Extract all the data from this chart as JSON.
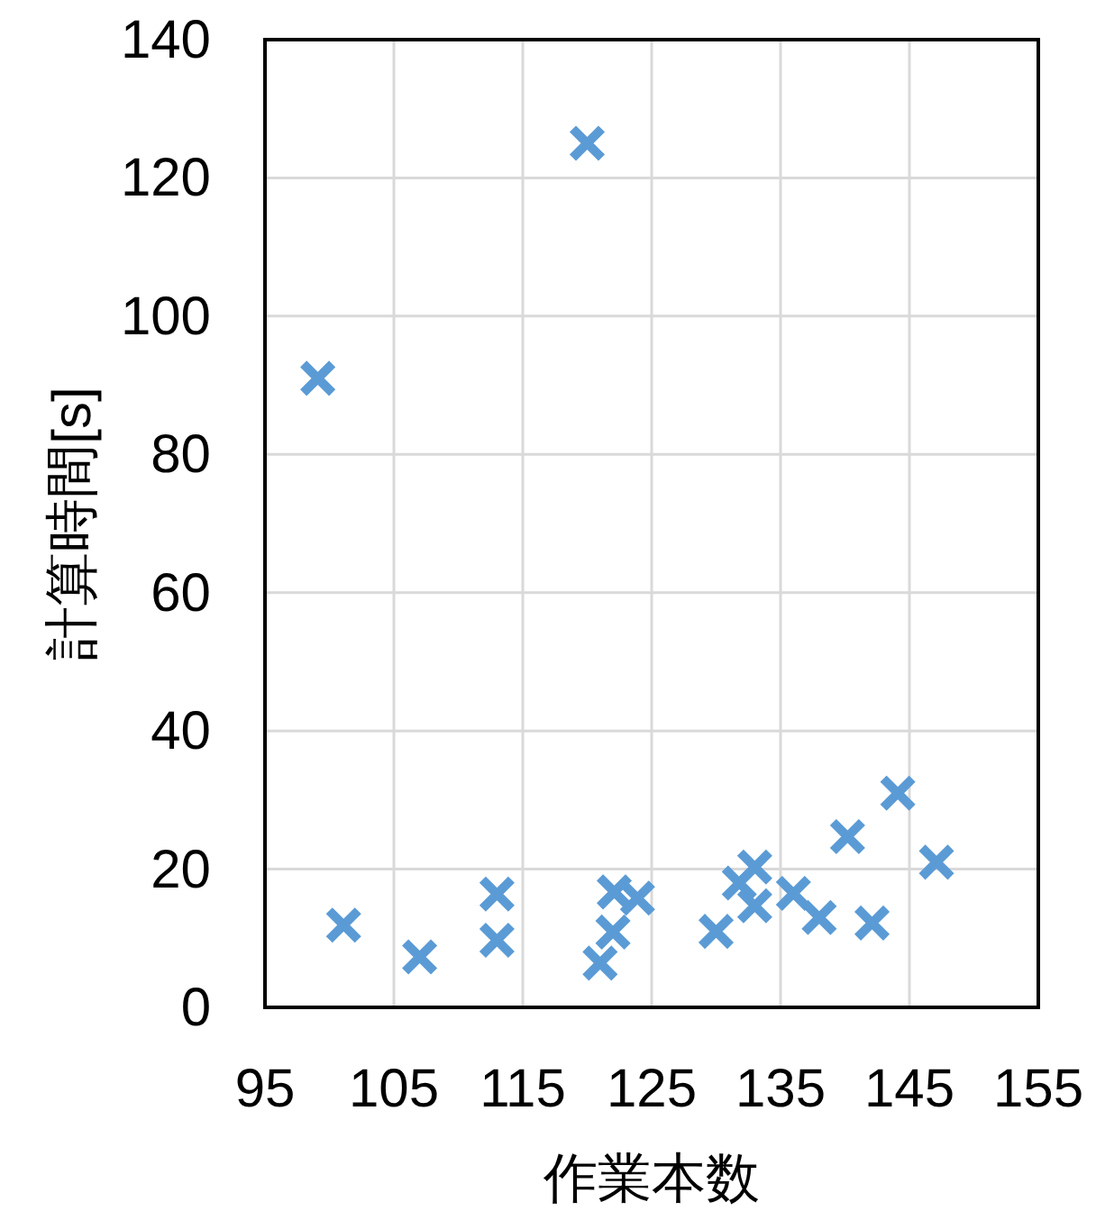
{
  "chart_data": {
    "type": "scatter",
    "xlabel": "作業本数",
    "ylabel": "計算時間[s]",
    "x": [
      99.1,
      120,
      101.1,
      107,
      113,
      113,
      121,
      122,
      122.1,
      123.9,
      130,
      131.8,
      133,
      133,
      136,
      138,
      140.2,
      142.1,
      144.1,
      147.1
    ],
    "series": [
      {
        "color": "#5b9bd5",
        "values": [
          91,
          125,
          11.9,
          7.3,
          16.4,
          9.7,
          6.4,
          10.9,
          16.7,
          15.8,
          11,
          18,
          20.3,
          14.7,
          16.5,
          13,
          24.7,
          12.2,
          31,
          21
        ]
      }
    ],
    "xlim": [
      95,
      155
    ],
    "xticks": [
      95,
      105,
      115,
      125,
      135,
      145,
      155
    ],
    "ylim": [
      0,
      140
    ],
    "yticks": [
      0,
      20,
      40,
      60,
      80,
      100,
      120,
      140
    ],
    "grid": true,
    "marker": "cross"
  }
}
